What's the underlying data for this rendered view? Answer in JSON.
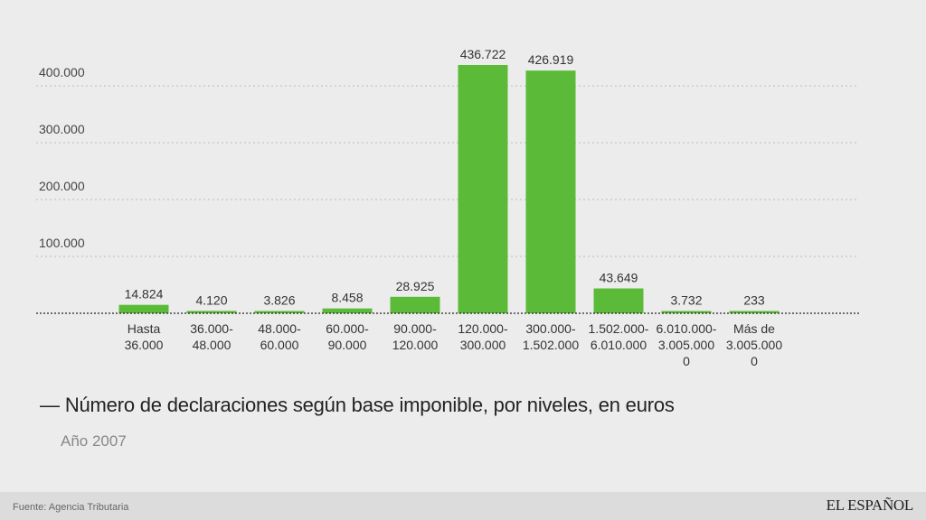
{
  "chart_data": {
    "type": "bar",
    "categories": [
      [
        "Hasta",
        "36.000"
      ],
      [
        "36.000-",
        "48.000"
      ],
      [
        "48.000-",
        "60.000"
      ],
      [
        "60.000-",
        "90.000"
      ],
      [
        "90.000-",
        "120.000"
      ],
      [
        "120.000-",
        "300.000"
      ],
      [
        "300.000-",
        "1.502.000"
      ],
      [
        "1.502.000-",
        "6.010.000"
      ],
      [
        "6.010.000-",
        "3.005.000",
        "0"
      ],
      [
        "Más de",
        "3.005.000",
        "0"
      ]
    ],
    "values": [
      14824,
      4120,
      3826,
      8458,
      28925,
      436722,
      426919,
      43649,
      3732,
      233
    ],
    "value_labels": [
      "14.824",
      "4.120",
      "3.826",
      "8.458",
      "28.925",
      "436.722",
      "426.919",
      "43.649",
      "3.732",
      "233"
    ],
    "y_ticks": [
      100000,
      200000,
      300000,
      400000
    ],
    "y_tick_labels": [
      "100.000",
      "200.000",
      "300.000",
      "400.000"
    ],
    "ylim": [
      0,
      436722
    ],
    "grid": true,
    "bar_color": "#5bbb38",
    "title": "Número de declaraciones según base imponible, por niveles, en euros",
    "subtitle": "Año 2007"
  },
  "header": {
    "title_dash": "—",
    "title": "Número de declaraciones según base imponible, por niveles, en euros",
    "subtitle": "Año 2007"
  },
  "footer": {
    "source": "Fuente: Agencia Tributaria",
    "brand": "EL ESPAÑOL"
  },
  "colors": {
    "background": "#ececec",
    "footer_background": "#dcdcdc",
    "bar": "#5bbb38",
    "gridline": "#bbbbbb",
    "baseline": "#222222"
  }
}
